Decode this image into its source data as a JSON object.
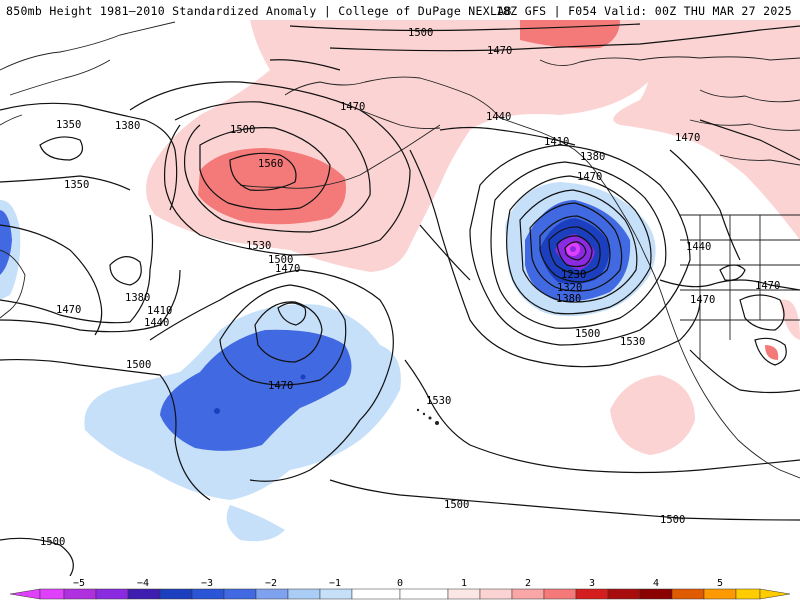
{
  "header": {
    "title_left": "850mb Height 1981–2010 Standardized Anomaly | College of DuPage NEXLAB",
    "title_right": "18Z GFS | F054 Valid: 00Z THU MAR 27 2025"
  },
  "map": {
    "variable": "850mb Height",
    "anomaly_colors": {
      "neg5": "#e040fb",
      "neg4": "#8a2be2",
      "neg3": "#1c3fbf",
      "neg2": "#4169e1",
      "neg1": "#c6e0fa",
      "pos1": "#fcd3d3",
      "pos2": "#f47a7a",
      "pos3": "#d41e1e",
      "pos4": "#8b0000",
      "pos5": "#ff9900"
    },
    "contour_labels": [
      {
        "id": "l1500a",
        "text": "1500"
      },
      {
        "id": "l1470a",
        "text": "1470"
      },
      {
        "id": "l1440a",
        "text": "1440"
      },
      {
        "id": "l1410a",
        "text": "1410"
      },
      {
        "id": "l1380a",
        "text": "1380"
      },
      {
        "id": "l1350a",
        "text": "1350"
      },
      {
        "id": "l1350b",
        "text": "1350"
      },
      {
        "id": "l1380b",
        "text": "1380"
      },
      {
        "id": "l1500b",
        "text": "1500"
      },
      {
        "id": "l1470b",
        "text": "1470"
      },
      {
        "id": "l1560",
        "text": "1560"
      },
      {
        "id": "l1530a",
        "text": "1530"
      },
      {
        "id": "l1500c",
        "text": "1500"
      },
      {
        "id": "l1470c",
        "text": "1470"
      },
      {
        "id": "l1380c",
        "text": "1380"
      },
      {
        "id": "l1410b",
        "text": "1410"
      },
      {
        "id": "l1440b",
        "text": "1440"
      },
      {
        "id": "l1470d",
        "text": "1470"
      },
      {
        "id": "l1500d",
        "text": "1500"
      },
      {
        "id": "l1470e",
        "text": "1470"
      },
      {
        "id": "l1530b",
        "text": "1530"
      },
      {
        "id": "l1500e",
        "text": "1500"
      },
      {
        "id": "l1530c",
        "text": "1530"
      },
      {
        "id": "l1500f",
        "text": "1500"
      },
      {
        "id": "l1500g",
        "text": "1500"
      },
      {
        "id": "l1500h",
        "text": "1500"
      },
      {
        "id": "l1440c",
        "text": "1440"
      },
      {
        "id": "l1470f",
        "text": "1470"
      },
      {
        "id": "l1470g",
        "text": "1470"
      },
      {
        "id": "l1470h",
        "text": "1470"
      },
      {
        "id": "l1230",
        "text": "1230"
      },
      {
        "id": "l1320",
        "text": "1320"
      },
      {
        "id": "l1380d",
        "text": "1380"
      },
      {
        "id": "l1470i",
        "text": "1470"
      }
    ]
  },
  "colorbar": {
    "ticks": [
      "−5",
      "−4",
      "−3",
      "−2",
      "−1",
      "0",
      "1",
      "2",
      "3",
      "4",
      "5"
    ]
  }
}
